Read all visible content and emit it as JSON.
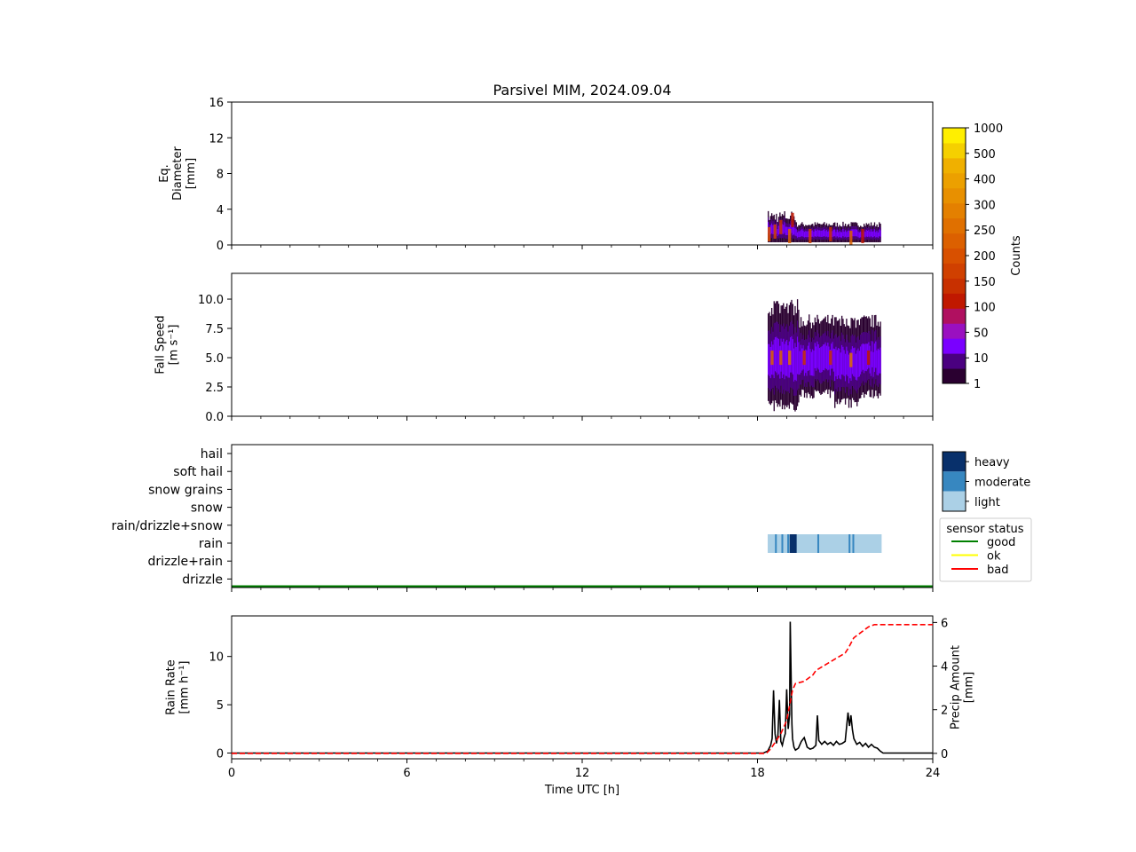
{
  "title": "Parsivel MIM, 2024.09.04",
  "colors": {
    "precip_type_fill": "#abd0e6",
    "precip_type_moderate": "#3787c0",
    "precip_type_heavy": "#08306b",
    "rain_rate_line": "#000000",
    "precip_amount_line": "#ff0000",
    "status_good": "#008000",
    "status_ok": "#ffff00",
    "status_bad": "#ff0000"
  },
  "colorbar": {
    "label": "Counts",
    "tick_labels": [
      "1",
      "10",
      "50",
      "100",
      "150",
      "200",
      "250",
      "300",
      "400",
      "500",
      "1000"
    ],
    "colors": [
      "#2a0030",
      "#4a0080",
      "#7a00ff",
      "#9a10c0",
      "#b01060",
      "#c01800",
      "#c83000",
      "#d04000",
      "#d85000",
      "#dc6000",
      "#e07000",
      "#e48000",
      "#e89000",
      "#eca000",
      "#f0b000",
      "#f5d000",
      "#ffef00"
    ]
  },
  "precip_legend": {
    "labels": [
      "heavy",
      "moderate",
      "light"
    ]
  },
  "status_legend": {
    "title": "sensor status",
    "items": [
      {
        "label": "good",
        "color": "#008000"
      },
      {
        "label": "ok",
        "color": "#ffff00"
      },
      {
        "label": "bad",
        "color": "#ff0000"
      }
    ]
  },
  "x_axis": {
    "label": "Time UTC [h]",
    "tick_labels": [
      "0",
      "6",
      "12",
      "18",
      "24"
    ],
    "xlim": [
      0,
      24
    ]
  },
  "chart_data": [
    {
      "type": "heatmap",
      "title": "Parsivel MIM, 2024.09.04",
      "ylabel_lines": [
        "Eq.",
        "Diameter",
        "[mm]"
      ],
      "ylim": [
        0,
        16
      ],
      "y_tick_labels": [
        "0",
        "4",
        "8",
        "12",
        "16"
      ],
      "y_ticks": [
        0,
        4,
        8,
        12,
        16
      ],
      "data_extent": {
        "x": [
          18.35,
          22.2
        ],
        "y": [
          0.3,
          4.0
        ]
      },
      "cells": [
        {
          "x": 18.4,
          "y": 1.2,
          "count": 30
        },
        {
          "x": 18.6,
          "y": 1.5,
          "count": 20
        },
        {
          "x": 18.8,
          "y": 2.0,
          "count": 15
        },
        {
          "x": 19.1,
          "y": 1.0,
          "count": 60
        },
        {
          "x": 19.2,
          "y": 2.8,
          "count": 10
        },
        {
          "x": 19.8,
          "y": 1.0,
          "count": 20
        },
        {
          "x": 20.5,
          "y": 1.2,
          "count": 15
        },
        {
          "x": 21.2,
          "y": 0.8,
          "count": 50
        },
        {
          "x": 21.6,
          "y": 1.0,
          "count": 10
        }
      ]
    },
    {
      "type": "heatmap",
      "ylabel_lines": [
        "Fall Speed",
        "[m s⁻¹]"
      ],
      "ylim": [
        0,
        12.2
      ],
      "y_tick_labels": [
        "0.0",
        "2.5",
        "5.0",
        "7.5",
        "10.0"
      ],
      "y_ticks": [
        0,
        2.5,
        5,
        7.5,
        10
      ],
      "data_extent": {
        "x": [
          18.35,
          22.2
        ],
        "y": [
          0.3,
          10.0
        ]
      },
      "cells": [
        {
          "x": 18.5,
          "y": 5.0,
          "count": 40
        },
        {
          "x": 18.8,
          "y": 5.0,
          "count": 60
        },
        {
          "x": 19.1,
          "y": 5.0,
          "count": 80
        },
        {
          "x": 19.6,
          "y": 5.0,
          "count": 15
        },
        {
          "x": 20.5,
          "y": 5.0,
          "count": 15
        },
        {
          "x": 21.2,
          "y": 4.8,
          "count": 70
        },
        {
          "x": 21.8,
          "y": 5.0,
          "count": 10
        }
      ]
    },
    {
      "type": "heatmap",
      "y_categories": [
        "hail",
        "soft hail",
        "snow grains",
        "snow",
        "rain/drizzle+snow",
        "rain",
        "drizzle+rain",
        "drizzle"
      ],
      "rain_band": {
        "x_start": 18.35,
        "x_end": 22.25,
        "category": "rain"
      },
      "intense_lines": [
        {
          "x": 18.6,
          "intensity": "moderate"
        },
        {
          "x": 18.82,
          "intensity": "moderate"
        },
        {
          "x": 19.02,
          "intensity": "moderate"
        },
        {
          "x": 19.1,
          "intensity": "heavy"
        },
        {
          "x": 19.18,
          "intensity": "heavy"
        },
        {
          "x": 19.25,
          "intensity": "heavy"
        },
        {
          "x": 20.05,
          "intensity": "moderate"
        },
        {
          "x": 21.12,
          "intensity": "moderate"
        },
        {
          "x": 21.25,
          "intensity": "moderate"
        }
      ],
      "sensor_status": "good"
    },
    {
      "type": "line",
      "xlabel": "Time UTC [h]",
      "ylabel_lines": [
        "Rain Rate",
        "[mm h⁻¹]"
      ],
      "ylim": [
        -0.6,
        14.2
      ],
      "y_tick_labels": [
        "0",
        "5",
        "10"
      ],
      "y_ticks": [
        0,
        5,
        10
      ],
      "y2label_lines": [
        "Precip Amount",
        "[mm]"
      ],
      "y2lim": [
        -0.25,
        6.3
      ],
      "y2_tick_labels": [
        "0",
        "2",
        "4",
        "6"
      ],
      "y2_ticks": [
        0,
        2,
        4,
        6
      ],
      "series": [
        {
          "axis": "left",
          "style": "solid",
          "x": [
            0,
            18.2,
            18.35,
            18.45,
            18.5,
            18.55,
            18.6,
            18.65,
            18.7,
            18.75,
            18.8,
            18.85,
            18.9,
            18.95,
            19.0,
            19.05,
            19.1,
            19.12,
            19.15,
            19.18,
            19.2,
            19.25,
            19.3,
            19.4,
            19.5,
            19.6,
            19.7,
            19.8,
            19.9,
            20.0,
            20.05,
            20.1,
            20.2,
            20.3,
            20.4,
            20.5,
            20.6,
            20.7,
            20.8,
            20.9,
            21.0,
            21.1,
            21.15,
            21.2,
            21.25,
            21.3,
            21.4,
            21.5,
            21.6,
            21.7,
            21.8,
            21.9,
            22.0,
            22.1,
            22.2,
            22.3,
            24
          ],
          "y": [
            0,
            0,
            0.2,
            0.8,
            1.5,
            6.5,
            2.0,
            1.0,
            1.8,
            5.5,
            1.2,
            0.8,
            1.5,
            2.0,
            6.6,
            2.5,
            4.0,
            13.6,
            8.0,
            3.0,
            1.5,
            0.6,
            0.3,
            0.5,
            1.2,
            1.6,
            0.6,
            0.4,
            0.5,
            0.8,
            3.9,
            1.3,
            0.9,
            1.2,
            0.9,
            1.1,
            0.8,
            1.2,
            0.9,
            1.0,
            1.2,
            4.2,
            2.8,
            3.9,
            2.4,
            1.5,
            0.9,
            1.1,
            0.7,
            1.0,
            0.6,
            0.9,
            0.6,
            0.5,
            0.2,
            0,
            0
          ]
        },
        {
          "axis": "right",
          "style": "dashed",
          "x": [
            0,
            18.3,
            18.45,
            18.6,
            18.8,
            19.0,
            19.1,
            19.2,
            19.3,
            19.6,
            19.9,
            20.0,
            20.5,
            21.0,
            21.1,
            21.3,
            21.5,
            21.7,
            21.8,
            22.0,
            22.3,
            23.0,
            24
          ],
          "y": [
            0,
            0,
            0.2,
            0.5,
            0.9,
            1.5,
            2.2,
            2.9,
            3.2,
            3.3,
            3.6,
            3.8,
            4.2,
            4.6,
            4.8,
            5.3,
            5.5,
            5.7,
            5.8,
            5.9,
            5.9,
            5.9,
            5.9
          ]
        }
      ]
    }
  ]
}
